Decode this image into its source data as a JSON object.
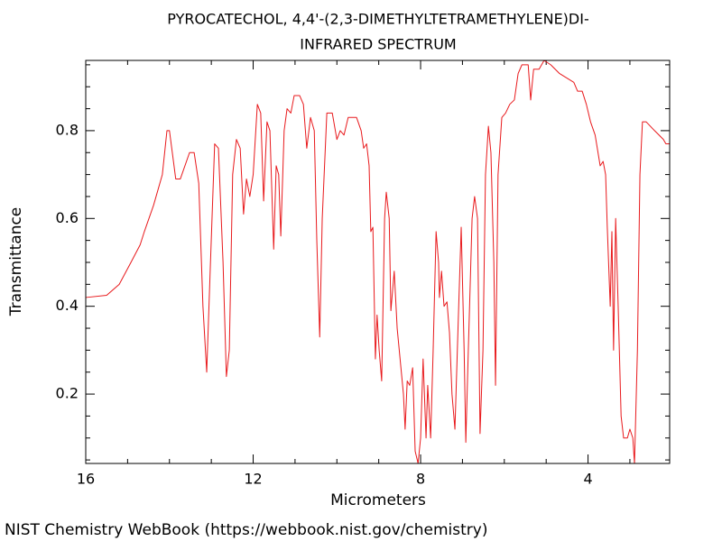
{
  "chart_data": {
    "type": "line",
    "title": "PYROCATECHOL, 4,4'-(2,3-DIMETHYLTETRAMETHYLENE)DI-",
    "subtitle": "INFRARED SPECTRUM",
    "x_label": "Micrometers",
    "y_label": "Transmittance",
    "footer": "NIST Chemistry WebBook (https://webbook.nist.gov/chemistry)",
    "color": "#e8191c",
    "x": [
      16.0,
      15.5,
      15.2,
      14.92,
      14.7,
      14.6,
      14.38,
      14.17,
      14.06,
      14.0,
      13.85,
      13.74,
      13.52,
      13.41,
      13.3,
      13.2,
      13.11,
      13.02,
      12.92,
      12.83,
      12.72,
      12.64,
      12.57,
      12.49,
      12.4,
      12.31,
      12.23,
      12.16,
      12.08,
      12.0,
      11.9,
      11.82,
      11.75,
      11.67,
      11.6,
      11.51,
      11.45,
      11.39,
      11.34,
      11.26,
      11.19,
      11.1,
      11.02,
      10.89,
      10.8,
      10.72,
      10.63,
      10.54,
      10.48,
      10.41,
      10.35,
      10.24,
      10.11,
      10.0,
      9.92,
      9.83,
      9.73,
      9.53,
      9.42,
      9.36,
      9.29,
      9.23,
      9.19,
      9.14,
      9.08,
      9.04,
      8.99,
      8.93,
      8.86,
      8.82,
      8.75,
      8.71,
      8.63,
      8.56,
      8.47,
      8.41,
      8.37,
      8.32,
      8.26,
      8.19,
      8.13,
      8.06,
      8.0,
      7.94,
      7.87,
      7.83,
      7.76,
      7.7,
      7.63,
      7.57,
      7.55,
      7.5,
      7.44,
      7.37,
      7.31,
      7.25,
      7.18,
      7.09,
      7.03,
      6.96,
      6.92,
      6.86,
      6.77,
      6.71,
      6.64,
      6.58,
      6.51,
      6.45,
      6.38,
      6.32,
      6.25,
      6.21,
      6.15,
      6.06,
      5.97,
      5.87,
      5.76,
      5.67,
      5.58,
      5.43,
      5.37,
      5.3,
      5.17,
      5.05,
      4.89,
      4.68,
      4.51,
      4.34,
      4.25,
      4.14,
      4.04,
      3.94,
      3.83,
      3.71,
      3.64,
      3.58,
      3.54,
      3.47,
      3.43,
      3.39,
      3.34,
      3.28,
      3.21,
      3.15,
      3.06,
      3.0,
      2.93,
      2.89,
      2.82,
      2.76,
      2.7,
      2.61,
      2.41,
      2.2,
      2.14,
      2.05
    ],
    "values": [
      0.42,
      0.425,
      0.45,
      0.5,
      0.54,
      0.57,
      0.63,
      0.7,
      0.8,
      0.8,
      0.69,
      0.69,
      0.75,
      0.75,
      0.68,
      0.4,
      0.25,
      0.5,
      0.77,
      0.76,
      0.5,
      0.24,
      0.3,
      0.7,
      0.78,
      0.76,
      0.61,
      0.69,
      0.65,
      0.7,
      0.86,
      0.84,
      0.64,
      0.82,
      0.8,
      0.53,
      0.72,
      0.7,
      0.56,
      0.8,
      0.85,
      0.84,
      0.88,
      0.88,
      0.86,
      0.76,
      0.83,
      0.8,
      0.55,
      0.33,
      0.6,
      0.84,
      0.84,
      0.78,
      0.8,
      0.79,
      0.83,
      0.83,
      0.8,
      0.76,
      0.77,
      0.72,
      0.57,
      0.58,
      0.28,
      0.38,
      0.3,
      0.23,
      0.6,
      0.66,
      0.6,
      0.39,
      0.48,
      0.35,
      0.26,
      0.2,
      0.12,
      0.23,
      0.22,
      0.26,
      0.07,
      0.042,
      0.1,
      0.28,
      0.1,
      0.22,
      0.1,
      0.3,
      0.57,
      0.5,
      0.42,
      0.48,
      0.4,
      0.41,
      0.34,
      0.2,
      0.12,
      0.4,
      0.58,
      0.3,
      0.09,
      0.3,
      0.6,
      0.65,
      0.6,
      0.11,
      0.3,
      0.7,
      0.81,
      0.75,
      0.5,
      0.22,
      0.7,
      0.83,
      0.84,
      0.86,
      0.87,
      0.93,
      0.95,
      0.95,
      0.87,
      0.94,
      0.94,
      0.96,
      0.95,
      0.93,
      0.92,
      0.91,
      0.89,
      0.89,
      0.86,
      0.82,
      0.79,
      0.72,
      0.73,
      0.7,
      0.58,
      0.4,
      0.57,
      0.3,
      0.6,
      0.4,
      0.15,
      0.1,
      0.1,
      0.12,
      0.1,
      0.042,
      0.3,
      0.7,
      0.82,
      0.82,
      0.8,
      0.78,
      0.77,
      0.77
    ],
    "xlim": [
      16,
      2.05
    ],
    "ylim": [
      0.042,
      0.96
    ],
    "xticks": [
      16,
      12,
      8,
      4
    ],
    "xticks_minor": [
      15,
      14,
      13,
      11,
      10,
      9,
      7,
      6,
      5,
      3
    ],
    "yticks": [
      0.2,
      0.4,
      0.6,
      0.8
    ],
    "yticks_minor": [
      0.05,
      0.1,
      0.15,
      0.25,
      0.3,
      0.35,
      0.45,
      0.5,
      0.55,
      0.65,
      0.7,
      0.75,
      0.85,
      0.9,
      0.95
    ]
  }
}
